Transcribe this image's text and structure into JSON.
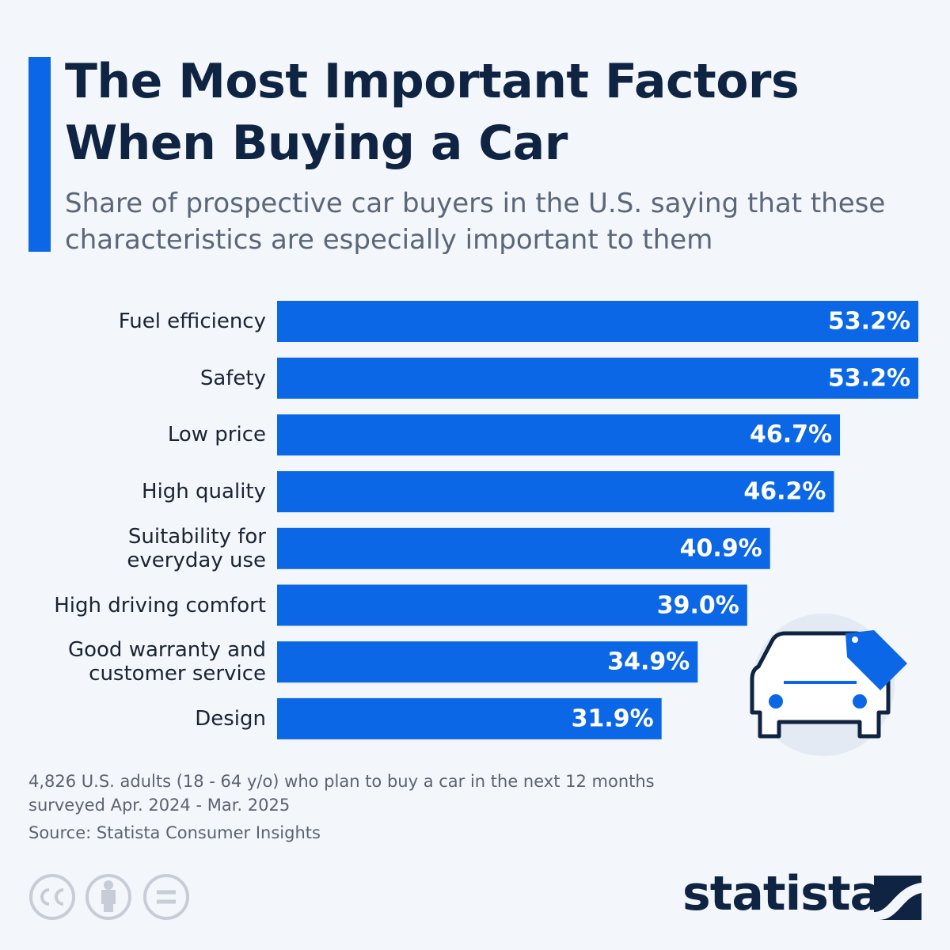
{
  "chart_data": {
    "type": "bar",
    "orientation": "horizontal",
    "title": "The Most Important Factors\nWhen Buying a Car",
    "subtitle": "Share of prospective car buyers in the U.S. saying that these\ncharacteristics are especially important to them",
    "categories": [
      "Fuel efficiency",
      "Safety",
      "Low price",
      "High quality",
      "Suitability for\neveryday use",
      "High driving comfort",
      "Good warranty and\ncustomer service",
      "Design"
    ],
    "values": [
      53.2,
      53.2,
      46.7,
      46.2,
      40.9,
      39.0,
      34.9,
      31.9
    ],
    "value_labels": [
      "53.2%",
      "53.2%",
      "46.7%",
      "46.2%",
      "40.9%",
      "39.0%",
      "34.9%",
      "31.9%"
    ],
    "color": "#0b67e6",
    "xlim": [
      0,
      53.2
    ],
    "note": "4,826 U.S. adults (18 - 64 y/o) who plan to buy a car in the next 12 months\nsurveyed Apr. 2024 - Mar. 2025",
    "source": "Source: Statista Consumer Insights",
    "brand": "statista"
  }
}
